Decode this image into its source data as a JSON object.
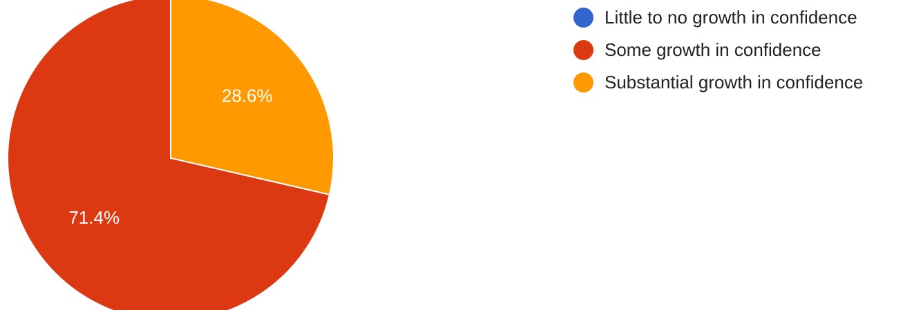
{
  "chart_data": {
    "type": "pie",
    "title": "",
    "slices": [
      {
        "label": "Little to no growth in confidence",
        "value": 0.0,
        "display": "",
        "color": "#3366cc"
      },
      {
        "label": "Some growth in confidence",
        "value": 71.4,
        "display": "71.4%",
        "color": "#dc3912"
      },
      {
        "label": "Substantial growth in confidence",
        "value": 28.6,
        "display": "28.6%",
        "color": "#ff9900"
      }
    ],
    "start_angle_deg": 0,
    "direction": "clockwise",
    "legend_position": "right"
  }
}
